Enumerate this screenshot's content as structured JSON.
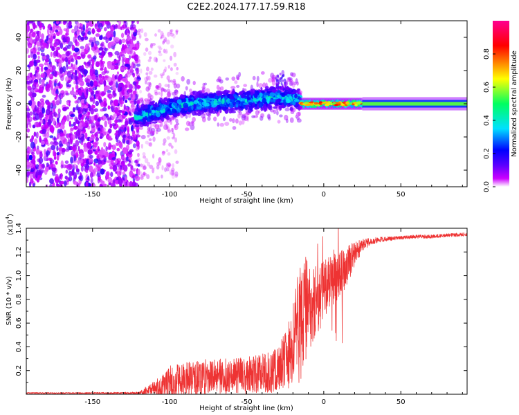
{
  "title": "C2E2.2024.177.17.59.R18",
  "chart_data": [
    {
      "type": "heatmap",
      "xlabel": "Height of straight line (km)",
      "ylabel": "Frequency (Hz)",
      "xlim": [
        -193,
        93
      ],
      "ylim": [
        -50,
        50
      ],
      "x_ticks": [
        -150,
        -100,
        -50,
        0,
        50
      ],
      "y_ticks": [
        -40,
        -20,
        0,
        20,
        40
      ],
      "colorbar": {
        "label": "Normalized spectral amplitude",
        "range": [
          0.0,
          1.0
        ],
        "ticks": [
          "0.0",
          "0.2",
          "0.4",
          "0.6",
          "0.8"
        ],
        "colors": [
          "#ffffff",
          "#cc00ff",
          "#5a00ff",
          "#0000ff",
          "#00e0ff",
          "#00ff60",
          "#ffff00",
          "#ff8000",
          "#ff0000",
          "#ff0090"
        ]
      },
      "regions": [
        {
          "x_range": [
            -193,
            -122
          ],
          "description_value": "broadband noise, amplitude 0.0-0.15 across all frequencies"
        },
        {
          "x_range": [
            -122,
            -15
          ],
          "center_hz": [
            -8,
            0,
            2,
            4,
            3
          ],
          "center_x": [
            -122,
            -90,
            -50,
            -30,
            -15
          ],
          "peak_amplitude": 0.45
        },
        {
          "x_range": [
            -15,
            25
          ],
          "center_hz": 0,
          "peak_amplitude": 0.85
        },
        {
          "x_range": [
            25,
            93
          ],
          "center_hz": 0,
          "peak_amplitude": 0.55
        }
      ],
      "grid": false
    },
    {
      "type": "line",
      "xlabel": "Height of straight line (km)",
      "ylabel": "SNR (10 * v/v)",
      "y_multiplier": "(x10",
      "y_multiplier_exp": "4",
      "y_multiplier_close": ")",
      "xlim": [
        -193,
        93
      ],
      "ylim": [
        0,
        1.4
      ],
      "x_ticks": [
        -150,
        -100,
        -50,
        0,
        50
      ],
      "y_ticks": [
        0.2,
        0.4,
        0.6,
        0.8,
        1.0,
        1.2,
        1.4
      ],
      "color": "#ee3333",
      "series": [
        {
          "x": [
            -193,
            -150,
            -120,
            -115,
            -105,
            -100,
            -90,
            -80,
            -70,
            -60,
            -50,
            -40,
            -30,
            -25,
            -20,
            -18,
            -15,
            -12,
            -10,
            -8,
            -5,
            -2,
            0,
            5,
            10,
            15,
            20,
            25,
            30,
            40,
            50,
            60,
            70,
            80,
            93
          ],
          "base": [
            0.01,
            0.01,
            0.01,
            0.03,
            0.06,
            0.1,
            0.13,
            0.14,
            0.15,
            0.15,
            0.16,
            0.18,
            0.2,
            0.28,
            0.4,
            0.5,
            0.62,
            0.7,
            0.72,
            0.74,
            0.78,
            0.83,
            0.88,
            0.95,
            1.0,
            1.1,
            1.18,
            1.25,
            1.29,
            1.31,
            1.32,
            1.33,
            1.33,
            1.34,
            1.35
          ],
          "amp": [
            0.005,
            0.005,
            0.01,
            0.04,
            0.1,
            0.14,
            0.14,
            0.15,
            0.15,
            0.15,
            0.16,
            0.17,
            0.2,
            0.25,
            0.35,
            0.45,
            0.5,
            0.45,
            0.4,
            0.35,
            0.3,
            0.28,
            0.25,
            0.22,
            0.2,
            0.18,
            0.1,
            0.06,
            0.03,
            0.02,
            0.015,
            0.015,
            0.015,
            0.015,
            0.015
          ]
        }
      ],
      "grid": false
    }
  ]
}
